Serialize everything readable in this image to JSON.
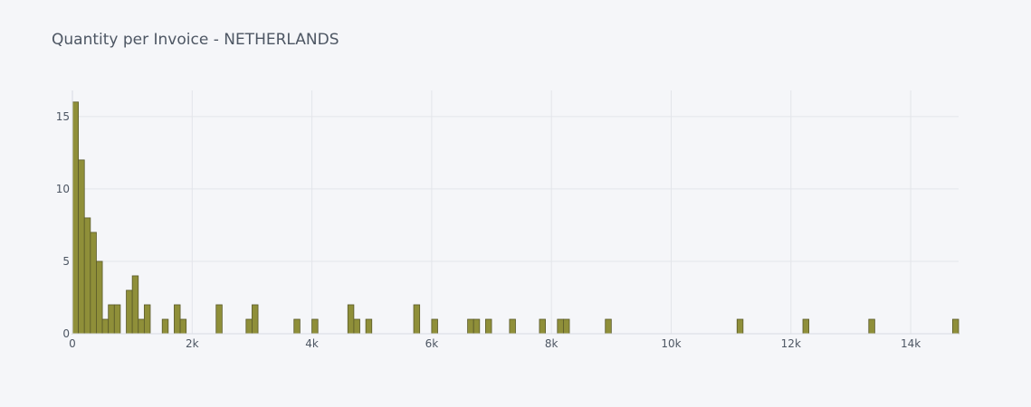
{
  "chart_data": {
    "type": "bar",
    "title": "Quantity per Invoice - NETHERLANDS",
    "xlabel": "",
    "ylabel": "",
    "bin_width": 100,
    "xlim": [
      0,
      14800
    ],
    "ylim": [
      0,
      16.8
    ],
    "grid": true,
    "legend": "none",
    "bar_color": "#8f8f39",
    "bar_edge_color": "#5a5a2a",
    "x_ticks": [
      {
        "value": 0,
        "label": "0"
      },
      {
        "value": 2000,
        "label": "2k"
      },
      {
        "value": 4000,
        "label": "4k"
      },
      {
        "value": 6000,
        "label": "6k"
      },
      {
        "value": 8000,
        "label": "8k"
      },
      {
        "value": 10000,
        "label": "10k"
      },
      {
        "value": 12000,
        "label": "12k"
      },
      {
        "value": 14000,
        "label": "14k"
      }
    ],
    "y_ticks": [
      {
        "value": 0,
        "label": "0"
      },
      {
        "value": 5,
        "label": "5"
      },
      {
        "value": 10,
        "label": "10"
      },
      {
        "value": 15,
        "label": "15"
      }
    ],
    "bins": [
      {
        "x": 0,
        "count": 16
      },
      {
        "x": 100,
        "count": 12
      },
      {
        "x": 200,
        "count": 8
      },
      {
        "x": 300,
        "count": 7
      },
      {
        "x": 400,
        "count": 5
      },
      {
        "x": 500,
        "count": 1
      },
      {
        "x": 600,
        "count": 2
      },
      {
        "x": 700,
        "count": 2
      },
      {
        "x": 900,
        "count": 3
      },
      {
        "x": 1000,
        "count": 4
      },
      {
        "x": 1100,
        "count": 1
      },
      {
        "x": 1200,
        "count": 2
      },
      {
        "x": 1500,
        "count": 1
      },
      {
        "x": 1700,
        "count": 2
      },
      {
        "x": 1800,
        "count": 1
      },
      {
        "x": 2400,
        "count": 2
      },
      {
        "x": 2900,
        "count": 1
      },
      {
        "x": 3000,
        "count": 2
      },
      {
        "x": 3700,
        "count": 1
      },
      {
        "x": 4000,
        "count": 1
      },
      {
        "x": 4600,
        "count": 2
      },
      {
        "x": 4700,
        "count": 1
      },
      {
        "x": 4900,
        "count": 1
      },
      {
        "x": 5700,
        "count": 2
      },
      {
        "x": 6000,
        "count": 1
      },
      {
        "x": 6600,
        "count": 1
      },
      {
        "x": 6700,
        "count": 1
      },
      {
        "x": 6900,
        "count": 1
      },
      {
        "x": 7300,
        "count": 1
      },
      {
        "x": 7800,
        "count": 1
      },
      {
        "x": 8100,
        "count": 1
      },
      {
        "x": 8200,
        "count": 1
      },
      {
        "x": 8900,
        "count": 1
      },
      {
        "x": 11100,
        "count": 1
      },
      {
        "x": 12200,
        "count": 1
      },
      {
        "x": 13300,
        "count": 1
      },
      {
        "x": 14700,
        "count": 1
      }
    ]
  }
}
